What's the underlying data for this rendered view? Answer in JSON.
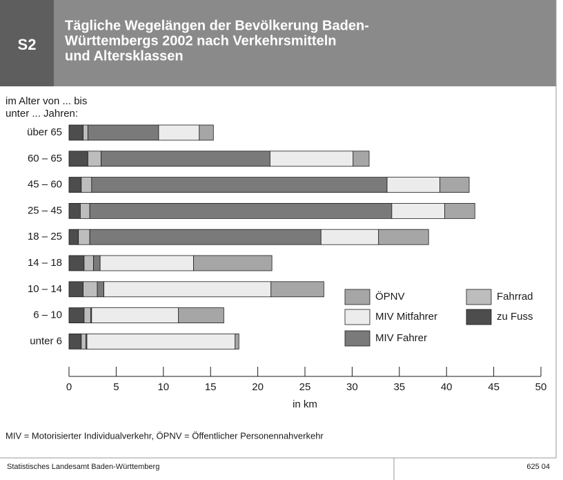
{
  "chart_data": {
    "type": "stacked-barh",
    "badge": "S2",
    "title": [
      "Tägliche Wegelängen der Bevölkerung Baden-",
      "Württembergs 2002 nach Verkehrsmitteln",
      "und Altersklassen"
    ],
    "ylabel": [
      "im Alter von ... bis",
      "unter ... Jahren:"
    ],
    "xlabel": "in km",
    "categories": [
      "über 65",
      "60 – 65",
      "45 – 60",
      "25 – 45",
      "18 – 25",
      "14 – 18",
      "10 – 14",
      "6 – 10",
      "unter 6"
    ],
    "series": [
      {
        "name": "zu Fuss",
        "color": "#4d4d4d",
        "values": [
          1.5,
          2.0,
          1.3,
          1.2,
          1.0,
          1.6,
          1.5,
          1.6,
          1.3
        ]
      },
      {
        "name": "Fahrrad",
        "color": "#bdbdbd",
        "values": [
          0.5,
          1.4,
          1.1,
          1.0,
          1.2,
          1.0,
          1.5,
          0.7,
          0.5
        ]
      },
      {
        "name": "MIV Fahrer",
        "color": "#7a7a7a",
        "values": [
          7.5,
          17.9,
          31.3,
          32.0,
          24.5,
          0.7,
          0.7,
          0.1,
          0.1
        ]
      },
      {
        "name": "MIV Mitfahrer",
        "color": "#ececec",
        "values": [
          4.3,
          8.8,
          5.6,
          5.6,
          6.1,
          9.9,
          17.7,
          9.2,
          15.7
        ]
      },
      {
        "name": "ÖPNV",
        "color": "#a6a6a6",
        "values": [
          1.5,
          1.7,
          3.1,
          3.2,
          5.3,
          8.3,
          5.6,
          4.8,
          0.4
        ]
      }
    ],
    "xlim": [
      0,
      50
    ],
    "xticks": [
      0,
      5,
      10,
      15,
      20,
      25,
      30,
      35,
      40,
      45,
      50
    ],
    "note": "MIV = Motorisierter Individualverkehr, ÖPNV = Öffentlicher Personennahverkehr",
    "source": "Statistisches Landesamt Baden-Württemberg",
    "code": "625 04"
  }
}
